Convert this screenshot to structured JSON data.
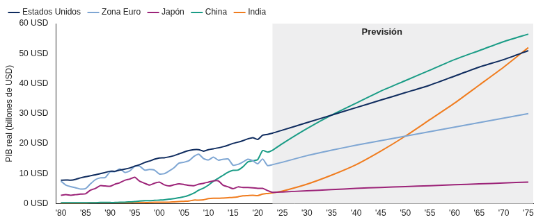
{
  "chart_data": {
    "type": "line",
    "y_label": "PIB real (billones de USD)",
    "legend": "top",
    "grid": false,
    "annotations": [
      {
        "text": "Previsión",
        "x_start": 2023
      }
    ],
    "xlim": [
      1979,
      2076
    ],
    "xticks": [
      {
        "value": 1980,
        "label": "'80"
      },
      {
        "value": 1985,
        "label": "'85"
      },
      {
        "value": 1990,
        "label": "'90"
      },
      {
        "value": 1995,
        "label": "'95"
      },
      {
        "value": 2000,
        "label": "'00"
      },
      {
        "value": 2005,
        "label": "'05"
      },
      {
        "value": 2010,
        "label": "'10"
      },
      {
        "value": 2015,
        "label": "'15"
      },
      {
        "value": 2020,
        "label": "'20"
      },
      {
        "value": 2025,
        "label": "'25"
      },
      {
        "value": 2030,
        "label": "'30"
      },
      {
        "value": 2035,
        "label": "'35"
      },
      {
        "value": 2040,
        "label": "'40"
      },
      {
        "value": 2045,
        "label": "'45"
      },
      {
        "value": 2050,
        "label": "'50"
      },
      {
        "value": 2055,
        "label": "'55"
      },
      {
        "value": 2060,
        "label": "'60"
      },
      {
        "value": 2065,
        "label": "'65"
      },
      {
        "value": 2070,
        "label": "'70"
      },
      {
        "value": 2075,
        "label": "'75"
      }
    ],
    "ylim": [
      0,
      60
    ],
    "yticks": [
      {
        "value": 0,
        "label": "0 USD"
      },
      {
        "value": 10,
        "label": "10 USD"
      },
      {
        "value": 20,
        "label": "20 USD"
      },
      {
        "value": 30,
        "label": "30 USD"
      },
      {
        "value": 40,
        "label": "40 USD"
      },
      {
        "value": 50,
        "label": "50 USD"
      },
      {
        "value": 60,
        "label": "60 USD"
      }
    ],
    "x": [
      1980,
      1981,
      1982,
      1983,
      1984,
      1985,
      1986,
      1987,
      1988,
      1989,
      1990,
      1991,
      1992,
      1993,
      1994,
      1995,
      1996,
      1997,
      1998,
      1999,
      2000,
      2001,
      2002,
      2003,
      2004,
      2005,
      2006,
      2007,
      2008,
      2009,
      2010,
      2011,
      2012,
      2013,
      2014,
      2015,
      2016,
      2017,
      2018,
      2019,
      2020,
      2021,
      2022,
      2023,
      2025,
      2030,
      2035,
      2040,
      2045,
      2050,
      2055,
      2060,
      2065,
      2070,
      2075
    ],
    "series": [
      {
        "name": "Estados Unidos",
        "color": "#0e2b5e",
        "values": [
          7.8,
          7.9,
          7.8,
          8.1,
          8.6,
          9.0,
          9.3,
          9.6,
          10.0,
          10.4,
          10.8,
          10.8,
          11.2,
          11.5,
          11.9,
          12.5,
          13.0,
          13.7,
          14.2,
          14.8,
          15.2,
          15.3,
          15.6,
          16.0,
          16.6,
          17.2,
          17.7,
          18.0,
          18.0,
          17.5,
          18.0,
          18.3,
          18.6,
          19.0,
          19.5,
          20.1,
          20.5,
          21.0,
          21.6,
          22.0,
          21.4,
          22.8,
          23.1,
          23.5,
          24.5,
          27,
          29.5,
          32,
          34.5,
          37,
          39.5,
          42.5,
          45.5,
          48,
          51
        ]
      },
      {
        "name": "Zona Euro",
        "color": "#7ea6d3",
        "values": [
          7.5,
          6.2,
          5.7,
          5.3,
          4.9,
          5.0,
          6.6,
          8.0,
          8.6,
          8.7,
          10.6,
          10.7,
          11.6,
          10.4,
          10.9,
          12.4,
          12.5,
          11.2,
          11.4,
          11.2,
          9.9,
          10.0,
          10.9,
          12.0,
          13.5,
          13.8,
          14.3,
          15.7,
          16.5,
          15.0,
          14.6,
          15.5,
          14.5,
          14.8,
          14.9,
          12.8,
          13.1,
          13.9,
          14.8,
          14.3,
          13.3,
          14.9,
          12.7,
          13.0,
          13.8,
          16,
          17.8,
          19.5,
          21,
          22.5,
          24,
          25.5,
          27,
          28.5,
          30
        ]
      },
      {
        "name": "Japón",
        "color": "#9c2378",
        "values": [
          2.8,
          3.0,
          2.8,
          3.0,
          3.2,
          3.3,
          4.5,
          5.1,
          6.0,
          5.9,
          5.8,
          6.5,
          7.0,
          7.8,
          8.2,
          8.8,
          7.5,
          6.8,
          6.2,
          6.8,
          7.2,
          6.3,
          5.9,
          6.3,
          6.6,
          6.4,
          6.1,
          6.0,
          6.5,
          6.8,
          7.2,
          7.6,
          7.6,
          6.1,
          5.6,
          5.0,
          5.6,
          5.4,
          5.4,
          5.3,
          5.1,
          5.1,
          4.4,
          3.8,
          3.9,
          4.3,
          4.7,
          5.1,
          5.4,
          5.7,
          6.0,
          6.3,
          6.6,
          6.9,
          7.2
        ]
      },
      {
        "name": "China",
        "color": "#1a9c86",
        "values": [
          0.3,
          0.3,
          0.3,
          0.3,
          0.3,
          0.3,
          0.3,
          0.3,
          0.4,
          0.4,
          0.4,
          0.4,
          0.5,
          0.5,
          0.6,
          0.7,
          0.9,
          1.0,
          1.0,
          1.1,
          1.2,
          1.3,
          1.5,
          1.7,
          2.0,
          2.3,
          2.8,
          3.5,
          4.5,
          5.2,
          6.2,
          7.5,
          8.5,
          9.5,
          10.5,
          11.1,
          11.2,
          12.3,
          13.9,
          14.3,
          14.7,
          17.7,
          17.2,
          17.8,
          20,
          25,
          29.5,
          33.5,
          37.5,
          41,
          44.5,
          48,
          51,
          54,
          56.5
        ]
      },
      {
        "name": "India",
        "color": "#f07c1e",
        "values": [
          0.2,
          0.2,
          0.2,
          0.2,
          0.2,
          0.2,
          0.3,
          0.3,
          0.3,
          0.3,
          0.3,
          0.3,
          0.3,
          0.3,
          0.3,
          0.4,
          0.4,
          0.4,
          0.4,
          0.5,
          0.5,
          0.5,
          0.5,
          0.6,
          0.7,
          0.8,
          0.9,
          1.2,
          1.2,
          1.3,
          1.7,
          1.8,
          1.8,
          1.9,
          2.0,
          2.1,
          2.3,
          2.6,
          2.7,
          2.8,
          2.7,
          3.2,
          3.4,
          3.6,
          4.2,
          6.5,
          9.5,
          13,
          17.5,
          22.5,
          28,
          33.5,
          39.5,
          45.5,
          52
        ]
      }
    ]
  }
}
